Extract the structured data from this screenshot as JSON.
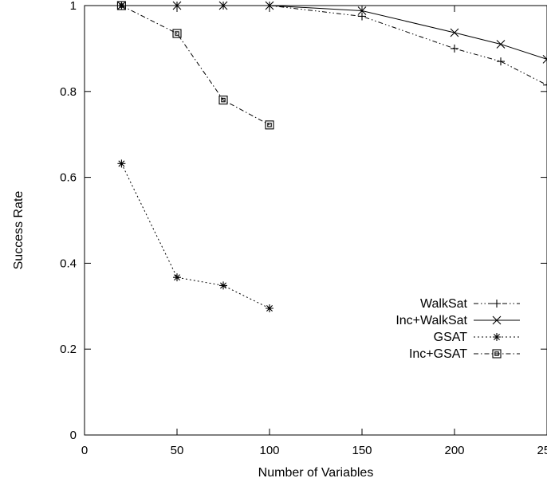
{
  "chart_data": {
    "type": "line",
    "xlabel": "Number of Variables",
    "ylabel": "Success Rate",
    "xlim": [
      0,
      250
    ],
    "ylim": [
      0,
      1
    ],
    "xticks": [
      0,
      50,
      100,
      150,
      200,
      250
    ],
    "yticks": [
      0,
      0.2,
      0.4,
      0.6,
      0.8,
      1
    ],
    "legend_position": "bottom-right",
    "grid": false,
    "series": [
      {
        "name": "WalkSat",
        "marker": "plus",
        "dash": "dash-dot-dot",
        "points": [
          [
            20,
            1.0
          ],
          [
            50,
            1.0
          ],
          [
            75,
            1.0
          ],
          [
            100,
            1.0
          ],
          [
            150,
            0.975
          ],
          [
            200,
            0.9
          ],
          [
            225,
            0.87
          ],
          [
            250,
            0.815
          ]
        ]
      },
      {
        "name": "Inc+WalkSat",
        "marker": "cross",
        "dash": "solid",
        "points": [
          [
            20,
            1.0
          ],
          [
            50,
            1.0
          ],
          [
            75,
            1.0
          ],
          [
            100,
            1.0
          ],
          [
            150,
            0.988
          ],
          [
            200,
            0.937
          ],
          [
            225,
            0.91
          ],
          [
            250,
            0.875
          ]
        ]
      },
      {
        "name": "GSAT",
        "marker": "star",
        "dash": "dotted",
        "points": [
          [
            20,
            0.632
          ],
          [
            50,
            0.367
          ],
          [
            75,
            0.348
          ],
          [
            100,
            0.295
          ]
        ]
      },
      {
        "name": "Inc+GSAT",
        "marker": "square",
        "dash": "dash-dot",
        "points": [
          [
            20,
            1.0
          ],
          [
            50,
            0.935
          ],
          [
            75,
            0.78
          ],
          [
            100,
            0.722
          ]
        ]
      }
    ]
  }
}
